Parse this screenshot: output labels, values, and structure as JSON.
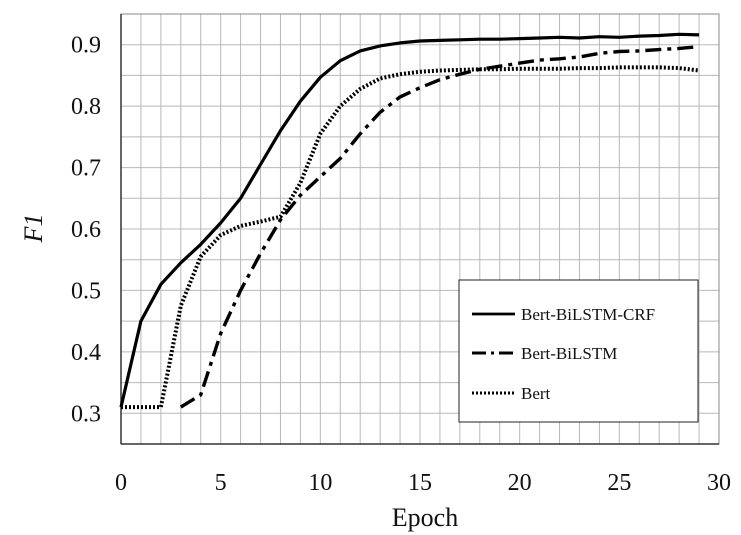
{
  "chart_data": {
    "type": "line",
    "title": "",
    "xlabel": "Epoch",
    "ylabel": "F1",
    "xlim": [
      0,
      30
    ],
    "ylim": [
      0.25,
      0.95
    ],
    "x_ticks": [
      "0",
      "5",
      "10",
      "15",
      "20",
      "25",
      "30"
    ],
    "y_ticks": [
      "0.3",
      "0.4",
      "0.5",
      "0.6",
      "0.7",
      "0.8",
      "0.9"
    ],
    "grid": true,
    "legend_position": "bottom-right",
    "series": [
      {
        "name": "Bert-BiLSTM-CRF",
        "style": "solid",
        "x": [
          0,
          1,
          2,
          3,
          4,
          5,
          6,
          7,
          8,
          9,
          10,
          11,
          12,
          13,
          14,
          15,
          16,
          17,
          18,
          19,
          20,
          21,
          22,
          23,
          24,
          25,
          26,
          27,
          28,
          29
        ],
        "y": [
          0.31,
          0.45,
          0.51,
          0.545,
          0.575,
          0.61,
          0.65,
          0.705,
          0.76,
          0.808,
          0.847,
          0.874,
          0.89,
          0.898,
          0.903,
          0.906,
          0.907,
          0.908,
          0.909,
          0.909,
          0.91,
          0.911,
          0.912,
          0.911,
          0.913,
          0.912,
          0.914,
          0.915,
          0.917,
          0.916
        ]
      },
      {
        "name": "Bert-BiLSTM",
        "style": "dashdot",
        "x": [
          3,
          4,
          5,
          6,
          7,
          8,
          9,
          10,
          11,
          12,
          13,
          14,
          15,
          16,
          17,
          18,
          19,
          20,
          21,
          22,
          23,
          24,
          25,
          26,
          27,
          28,
          29
        ],
        "y": [
          0.31,
          0.33,
          0.43,
          0.5,
          0.56,
          0.615,
          0.655,
          0.685,
          0.715,
          0.755,
          0.79,
          0.815,
          0.83,
          0.843,
          0.852,
          0.86,
          0.865,
          0.87,
          0.875,
          0.877,
          0.88,
          0.886,
          0.889,
          0.89,
          0.892,
          0.894,
          0.897
        ]
      },
      {
        "name": "Bert",
        "style": "dotted",
        "x": [
          0,
          1,
          2,
          3,
          4,
          5,
          6,
          7,
          8,
          9,
          10,
          11,
          12,
          13,
          14,
          15,
          16,
          17,
          18,
          19,
          20,
          21,
          22,
          23,
          24,
          25,
          26,
          27,
          28,
          29
        ],
        "y": [
          0.31,
          0.31,
          0.31,
          0.475,
          0.555,
          0.59,
          0.605,
          0.612,
          0.62,
          0.675,
          0.755,
          0.8,
          0.828,
          0.845,
          0.852,
          0.856,
          0.858,
          0.859,
          0.86,
          0.86,
          0.861,
          0.861,
          0.861,
          0.862,
          0.862,
          0.863,
          0.863,
          0.863,
          0.862,
          0.858
        ]
      }
    ]
  }
}
